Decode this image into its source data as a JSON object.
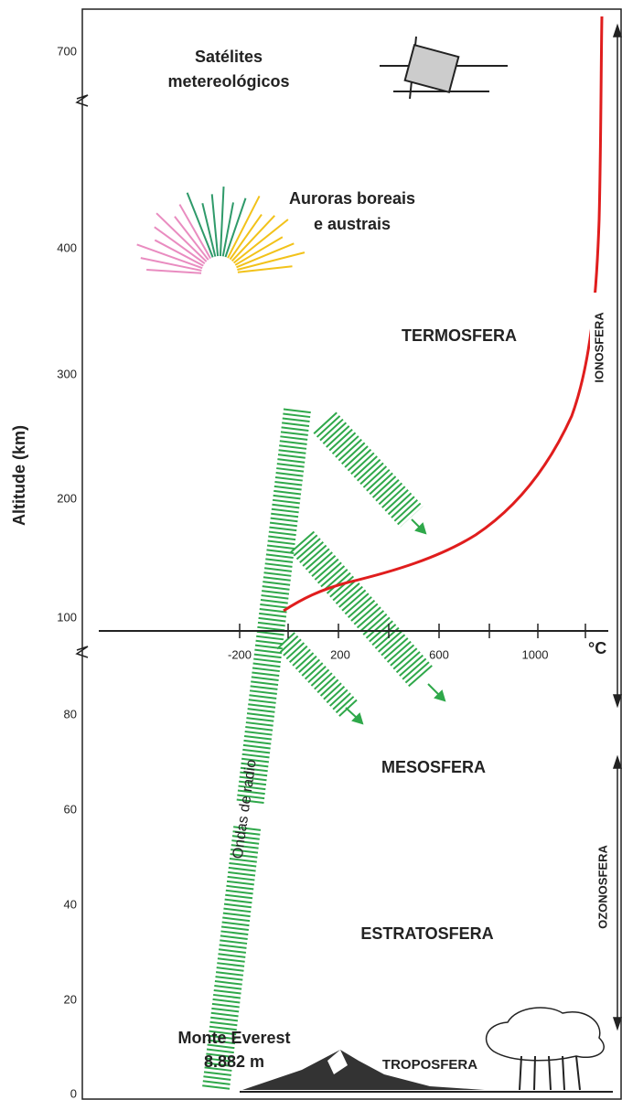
{
  "altitude_axis": {
    "title": "Altitude (km)",
    "ticks": [
      700,
      400,
      300,
      200,
      100,
      80,
      60,
      40,
      20,
      0
    ]
  },
  "temperature_axis": {
    "ticks": [
      -200,
      200,
      600,
      1000
    ],
    "unit": "°C"
  },
  "labels": {
    "satellites": [
      "Satélites",
      "metereológicos"
    ],
    "auroras": [
      "Auroras boreais",
      "e austrais"
    ],
    "thermosphere": "TERMOSFERA",
    "mesosphere": "MESOSFERA",
    "stratosphere": "ESTRATOSFERA",
    "troposphere": "TROPOSFERA",
    "ionosphere": "IONOSFERA",
    "ozonosphere": "OZONOSFERA",
    "radio_waves": "Ondas de radio",
    "everest": [
      "Monte Everest",
      "8.882 m"
    ]
  }
}
